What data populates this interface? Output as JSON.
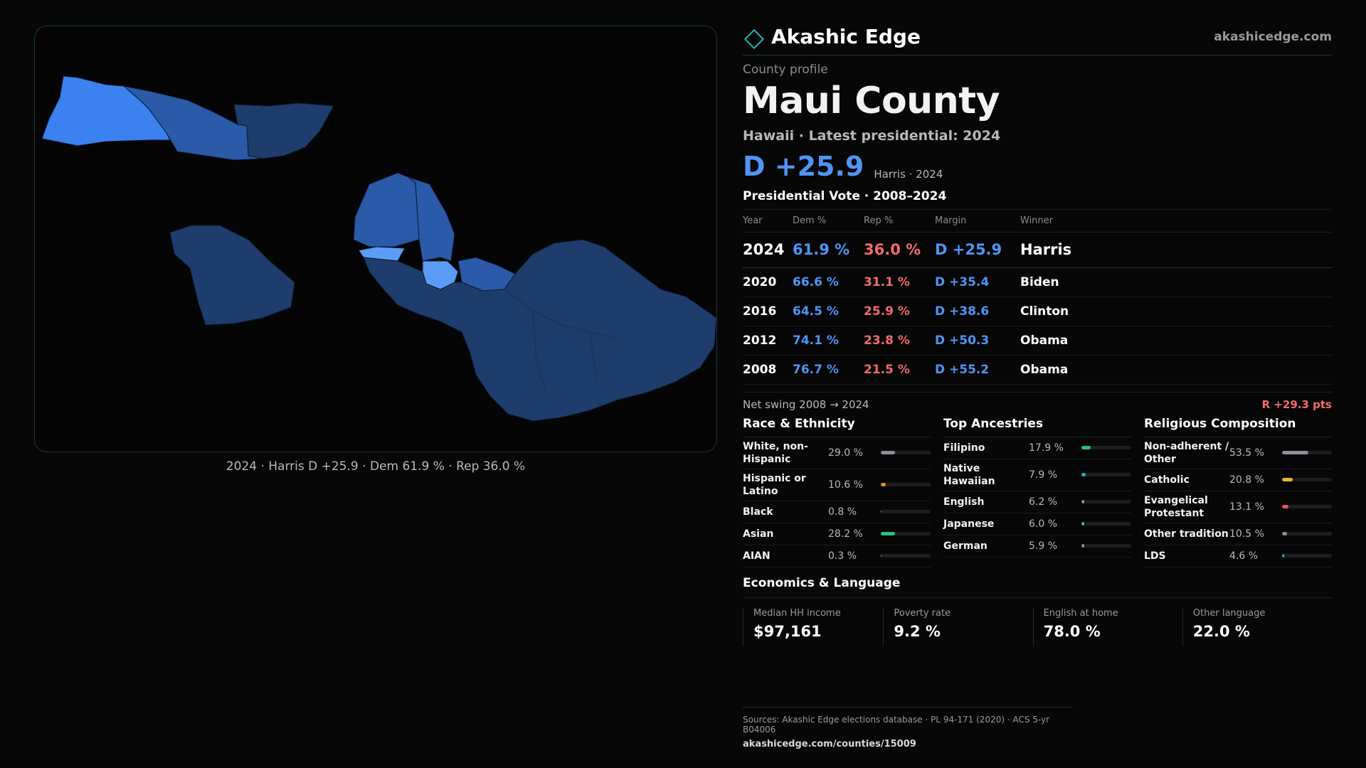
{
  "brand": {
    "name": "Akashic Edge",
    "site": "akashicedge.com",
    "mark_icon": "diamond-outline-icon",
    "accent": "#1fb5b8"
  },
  "header": {
    "eyebrow": "County profile",
    "title": "Maui County",
    "subtitle": "Hawaii · Latest presidential: 2024",
    "headline_margin": "D +25.9",
    "headline_note": "Harris · 2024"
  },
  "map": {
    "caption": "2024 · Harris D +25.9 · Dem 61.9 % · Rep 36.0 %",
    "colors": {
      "strong_dem": "#3b82f0",
      "mid_dem": "#2a5aa8",
      "lean_dem": "#1e3d6c",
      "light_dem": "#5a9cf5"
    }
  },
  "votes": {
    "title": "Presidential Vote · 2008–2024",
    "columns": [
      "Year",
      "Dem %",
      "Rep %",
      "Margin",
      "Winner"
    ],
    "rows": [
      {
        "year": "2024",
        "dem": "61.9 %",
        "rep": "36.0 %",
        "margin": "D +25.9",
        "winner": "Harris"
      },
      {
        "year": "2020",
        "dem": "66.6 %",
        "rep": "31.1 %",
        "margin": "D +35.4",
        "winner": "Biden"
      },
      {
        "year": "2016",
        "dem": "64.5 %",
        "rep": "25.9 %",
        "margin": "D +38.6",
        "winner": "Clinton"
      },
      {
        "year": "2012",
        "dem": "74.1 %",
        "rep": "23.8 %",
        "margin": "D +50.3",
        "winner": "Obama"
      },
      {
        "year": "2008",
        "dem": "76.7 %",
        "rep": "21.5 %",
        "margin": "D +55.2",
        "winner": "Obama"
      }
    ],
    "swing_label": "Net swing 2008 → 2024",
    "swing_value": "R +29.3 pts"
  },
  "demographics": {
    "race": {
      "title": "Race & Ethnicity",
      "items": [
        {
          "label": "White, non-Hispanic",
          "value": "29.0 %",
          "pct": 29.0,
          "color": "#8a8f99"
        },
        {
          "label": "Hispanic or Latino",
          "value": "10.6 %",
          "pct": 10.6,
          "color": "#e0902a"
        },
        {
          "label": "Black",
          "value": "0.8 %",
          "pct": 0.8,
          "color": "#8a8f99"
        },
        {
          "label": "Asian",
          "value": "28.2 %",
          "pct": 28.2,
          "color": "#2ec27e"
        },
        {
          "label": "AIAN",
          "value": "0.3 %",
          "pct": 0.3,
          "color": "#e07a3a"
        }
      ]
    },
    "ancestry": {
      "title": "Top Ancestries",
      "items": [
        {
          "label": "Filipino",
          "value": "17.9 %",
          "pct": 17.9,
          "color": "#2ec27e"
        },
        {
          "label": "Native Hawaiian",
          "value": "7.9 %",
          "pct": 7.9,
          "color": "#1fb5b8"
        },
        {
          "label": "English",
          "value": "6.2 %",
          "pct": 6.2,
          "color": "#8a8f99"
        },
        {
          "label": "Japanese",
          "value": "6.0 %",
          "pct": 6.0,
          "color": "#2ec27e"
        },
        {
          "label": "German",
          "value": "5.9 %",
          "pct": 5.9,
          "color": "#8a8f99"
        }
      ]
    },
    "religion": {
      "title": "Religious Composition",
      "items": [
        {
          "label": "Non-adherent / Other",
          "value": "53.5 %",
          "pct": 53.5,
          "color": "#8a8f99"
        },
        {
          "label": "Catholic",
          "value": "20.8 %",
          "pct": 20.8,
          "color": "#e8b42a"
        },
        {
          "label": "Evangelical Protestant",
          "value": "13.1 %",
          "pct": 13.1,
          "color": "#e05a5a"
        },
        {
          "label": "Other tradition",
          "value": "10.5 %",
          "pct": 10.5,
          "color": "#8a8f99"
        },
        {
          "label": "LDS",
          "value": "4.6 %",
          "pct": 4.6,
          "color": "#1fb5b8"
        }
      ]
    }
  },
  "economics": {
    "title": "Economics & Language",
    "cards": [
      {
        "label": "Median HH income",
        "value": "$97,161"
      },
      {
        "label": "Poverty rate",
        "value": "9.2 %"
      },
      {
        "label": "English at home",
        "value": "78.0 %"
      },
      {
        "label": "Other language",
        "value": "22.0 %"
      }
    ]
  },
  "footer": {
    "sources": "Sources: Akashic Edge elections database · PL 94-171 (2020) · ACS 5-yr B04006",
    "url": "akashicedge.com/counties/15009"
  }
}
